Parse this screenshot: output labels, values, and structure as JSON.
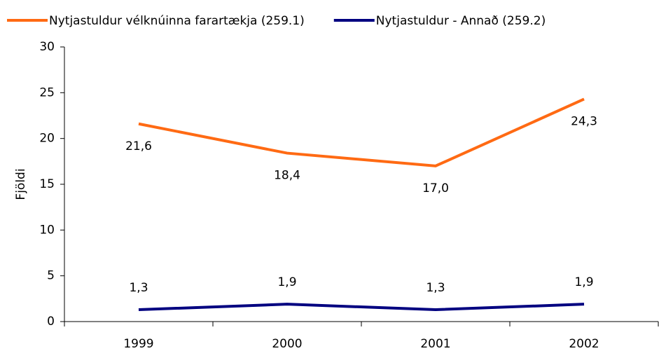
{
  "chart_data": {
    "type": "line",
    "categories": [
      "1999",
      "2000",
      "2001",
      "2002"
    ],
    "y_label": "Fjöldi",
    "series": [
      {
        "name": "Nytjastuldur vélknúinna farartækja (259.1)",
        "color": "#ff6a13",
        "values": [
          21.6,
          18.4,
          17.0,
          24.3
        ],
        "value_labels": [
          "21,6",
          "18,4",
          "17,0",
          "24,3"
        ],
        "label_position": "below"
      },
      {
        "name": "Nytjastuldur - Annað (259.2)",
        "color": "#000080",
        "values": [
          1.3,
          1.9,
          1.3,
          1.9
        ],
        "value_labels": [
          "1,3",
          "1,9",
          "1,3",
          "1,9"
        ],
        "label_position": "above"
      }
    ],
    "ylim": [
      0,
      30
    ],
    "yticks": [
      0,
      5,
      10,
      15,
      20,
      25,
      30
    ],
    "grid": false,
    "legend": "top"
  }
}
